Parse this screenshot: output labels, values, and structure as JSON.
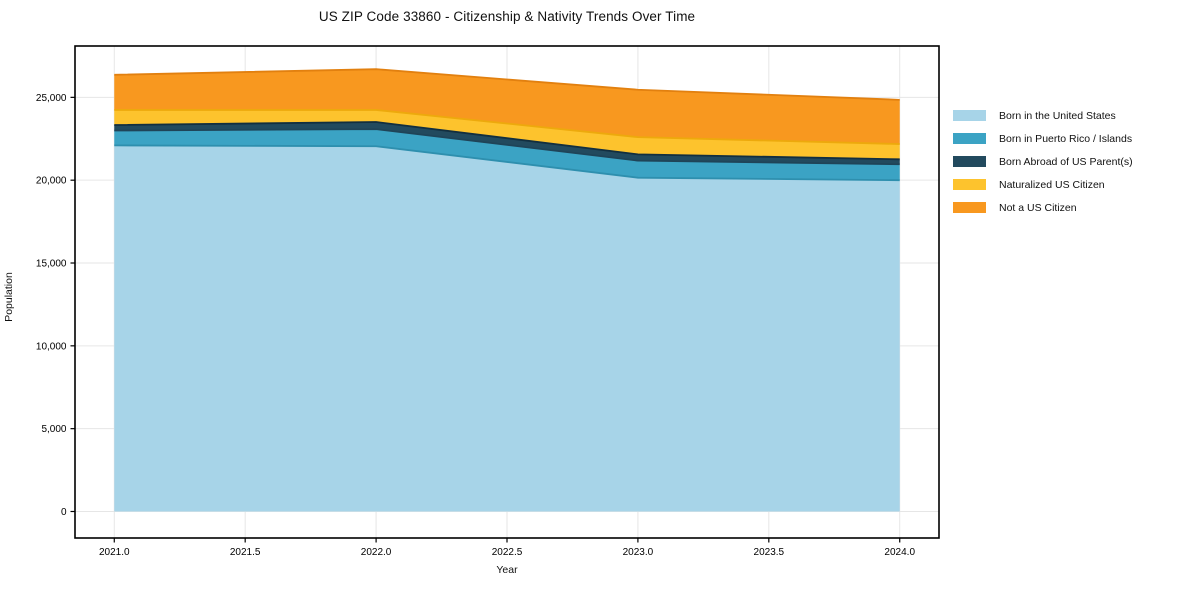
{
  "chart_data": {
    "type": "area",
    "stacked": true,
    "title": "US ZIP Code 33860 - Citizenship & Nativity Trends Over Time",
    "xlabel": "Year",
    "ylabel": "Population",
    "x": [
      2021,
      2022,
      2023,
      2024
    ],
    "series": [
      {
        "name": "Born in the United States",
        "values": [
          22100,
          22050,
          20150,
          20000
        ],
        "color": "#a7d4e8",
        "edge": "#2e8fae"
      },
      {
        "name": "Born in Puerto Rico / Islands",
        "values": [
          900,
          1030,
          1030,
          960
        ],
        "color": "#3ba3c4",
        "edge": "#1f4458"
      },
      {
        "name": "Born Abroad of US Parent(s)",
        "values": [
          330,
          430,
          380,
          300
        ],
        "color": "#224a5e",
        "edge": "#122f40"
      },
      {
        "name": "Naturalized US Citizen",
        "values": [
          910,
          730,
          1040,
          920
        ],
        "color": "#fdc32d",
        "edge": "#eda90c"
      },
      {
        "name": "Not a US Citizen",
        "values": [
          2120,
          2460,
          2860,
          2670
        ],
        "color": "#f8981f",
        "edge": "#e2800f"
      }
    ],
    "totals": [
      26360,
      26700,
      25460,
      24850
    ],
    "xticks": {
      "values": [
        2021.0,
        2021.5,
        2022.0,
        2022.5,
        2023.0,
        2023.5,
        2024.0
      ],
      "labels": [
        "2021.0",
        "2021.5",
        "2022.0",
        "2022.5",
        "2023.0",
        "2023.5",
        "2024.0"
      ]
    },
    "yticks": {
      "values": [
        0,
        5000,
        10000,
        15000,
        20000,
        25000
      ],
      "labels": [
        "0",
        "5,000",
        "10,000",
        "15,000",
        "20,000",
        "25,000"
      ]
    },
    "xlim": [
      2020.85,
      2024.15
    ],
    "ylim": [
      -1600,
      28100
    ],
    "grid": true,
    "grid_color": "#e6e6e6",
    "spine_color": "#000000",
    "tick_color": "#000000",
    "legend_position": "outside-right"
  }
}
